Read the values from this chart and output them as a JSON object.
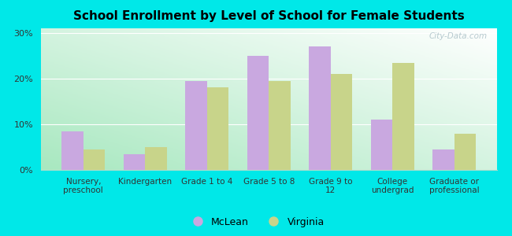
{
  "title": "School Enrollment by Level of School for Female Students",
  "categories": [
    "Nursery,\npreschool",
    "Kindergarten",
    "Grade 1 to 4",
    "Grade 5 to 8",
    "Grade 9 to\n12",
    "College\nundergrad",
    "Graduate or\nprofessional"
  ],
  "mclean": [
    8.5,
    3.5,
    19.5,
    25.0,
    27.0,
    11.0,
    4.5
  ],
  "virginia": [
    4.5,
    5.0,
    18.0,
    19.5,
    21.0,
    23.5,
    8.0
  ],
  "mclean_color": "#c9a8e0",
  "virginia_color": "#c8d48a",
  "background_color": "#00e8e8",
  "gradient_bottom_left": "#a8e8c0",
  "gradient_top_right": "#ffffff",
  "yticks": [
    0,
    10,
    20,
    30
  ],
  "ylim": [
    0,
    31
  ],
  "bar_width": 0.35,
  "legend_labels": [
    "McLean",
    "Virginia"
  ],
  "watermark": "City-Data.com"
}
